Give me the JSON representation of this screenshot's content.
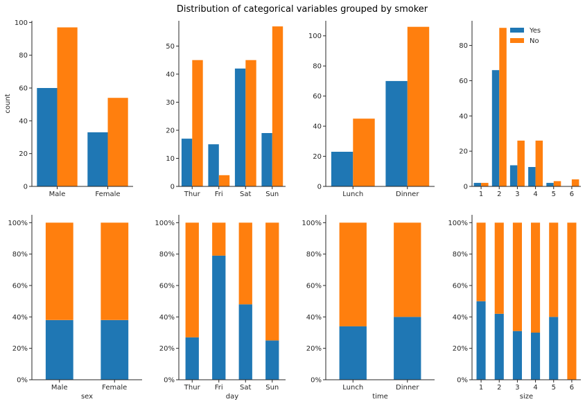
{
  "title": "Distribution of categorical variables grouped by smoker",
  "legend": [
    {
      "label": "Yes",
      "color": "#1f77b4"
    },
    {
      "label": "No",
      "color": "#ff7f0e"
    }
  ],
  "chart_data": [
    {
      "type": "bar",
      "panel": "count-sex",
      "categories": [
        "Male",
        "Female"
      ],
      "series": [
        {
          "name": "Yes",
          "values": [
            60,
            33
          ]
        },
        {
          "name": "No",
          "values": [
            97,
            54
          ]
        }
      ],
      "ylabel": "count",
      "xlabel": "",
      "ylim": [
        0,
        101
      ],
      "yticks": [
        0,
        20,
        40,
        60,
        80,
        100
      ],
      "ytick_format": "number"
    },
    {
      "type": "bar",
      "panel": "count-day",
      "categories": [
        "Thur",
        "Fri",
        "Sat",
        "Sun"
      ],
      "series": [
        {
          "name": "Yes",
          "values": [
            17,
            15,
            42,
            19
          ]
        },
        {
          "name": "No",
          "values": [
            45,
            4,
            45,
            57
          ]
        }
      ],
      "ylabel": "",
      "xlabel": "",
      "ylim": [
        0,
        59
      ],
      "yticks": [
        0,
        10,
        20,
        30,
        40,
        50
      ],
      "ytick_format": "number"
    },
    {
      "type": "bar",
      "panel": "count-time",
      "categories": [
        "Lunch",
        "Dinner"
      ],
      "series": [
        {
          "name": "Yes",
          "values": [
            23,
            70
          ]
        },
        {
          "name": "No",
          "values": [
            45,
            106
          ]
        }
      ],
      "ylabel": "",
      "xlabel": "",
      "ylim": [
        0,
        110
      ],
      "yticks": [
        0,
        20,
        40,
        60,
        80,
        100
      ],
      "ytick_format": "number"
    },
    {
      "type": "bar",
      "panel": "count-size",
      "categories": [
        "1",
        "2",
        "3",
        "4",
        "5",
        "6"
      ],
      "series": [
        {
          "name": "Yes",
          "values": [
            2,
            66,
            12,
            11,
            2,
            0
          ]
        },
        {
          "name": "No",
          "values": [
            2,
            90,
            26,
            26,
            3,
            4
          ]
        }
      ],
      "ylabel": "",
      "xlabel": "",
      "ylim": [
        0,
        94
      ],
      "yticks": [
        0,
        20,
        40,
        60,
        80
      ],
      "ytick_format": "number",
      "legend": "top-right"
    },
    {
      "type": "bar",
      "panel": "share-sex",
      "stacked": true,
      "categories": [
        "Male",
        "Female"
      ],
      "series": [
        {
          "name": "Yes",
          "values": [
            0.38,
            0.38
          ]
        },
        {
          "name": "No",
          "values": [
            0.62,
            0.62
          ]
        }
      ],
      "ylabel": "",
      "xlabel": "sex",
      "ylim": [
        0,
        1.05
      ],
      "yticks": [
        0,
        0.2,
        0.4,
        0.6,
        0.8,
        1.0
      ],
      "ytick_format": "percent"
    },
    {
      "type": "bar",
      "panel": "share-day",
      "stacked": true,
      "categories": [
        "Thur",
        "Fri",
        "Sat",
        "Sun"
      ],
      "series": [
        {
          "name": "Yes",
          "values": [
            0.27,
            0.79,
            0.48,
            0.25
          ]
        },
        {
          "name": "No",
          "values": [
            0.73,
            0.21,
            0.52,
            0.75
          ]
        }
      ],
      "ylabel": "",
      "xlabel": "day",
      "ylim": [
        0,
        1.05
      ],
      "yticks": [
        0,
        0.2,
        0.4,
        0.6,
        0.8,
        1.0
      ],
      "ytick_format": "percent"
    },
    {
      "type": "bar",
      "panel": "share-time",
      "stacked": true,
      "categories": [
        "Lunch",
        "Dinner"
      ],
      "series": [
        {
          "name": "Yes",
          "values": [
            0.34,
            0.4
          ]
        },
        {
          "name": "No",
          "values": [
            0.66,
            0.6
          ]
        }
      ],
      "ylabel": "",
      "xlabel": "time",
      "ylim": [
        0,
        1.05
      ],
      "yticks": [
        0,
        0.2,
        0.4,
        0.6,
        0.8,
        1.0
      ],
      "ytick_format": "percent"
    },
    {
      "type": "bar",
      "panel": "share-size",
      "stacked": true,
      "categories": [
        "1",
        "2",
        "3",
        "4",
        "5",
        "6"
      ],
      "series": [
        {
          "name": "Yes",
          "values": [
            0.5,
            0.42,
            0.31,
            0.3,
            0.4,
            0.0
          ]
        },
        {
          "name": "No",
          "values": [
            0.5,
            0.58,
            0.69,
            0.7,
            0.6,
            1.0
          ]
        }
      ],
      "ylabel": "",
      "xlabel": "size",
      "ylim": [
        0,
        1.05
      ],
      "yticks": [
        0,
        0.2,
        0.4,
        0.6,
        0.8,
        1.0
      ],
      "ytick_format": "percent"
    }
  ]
}
